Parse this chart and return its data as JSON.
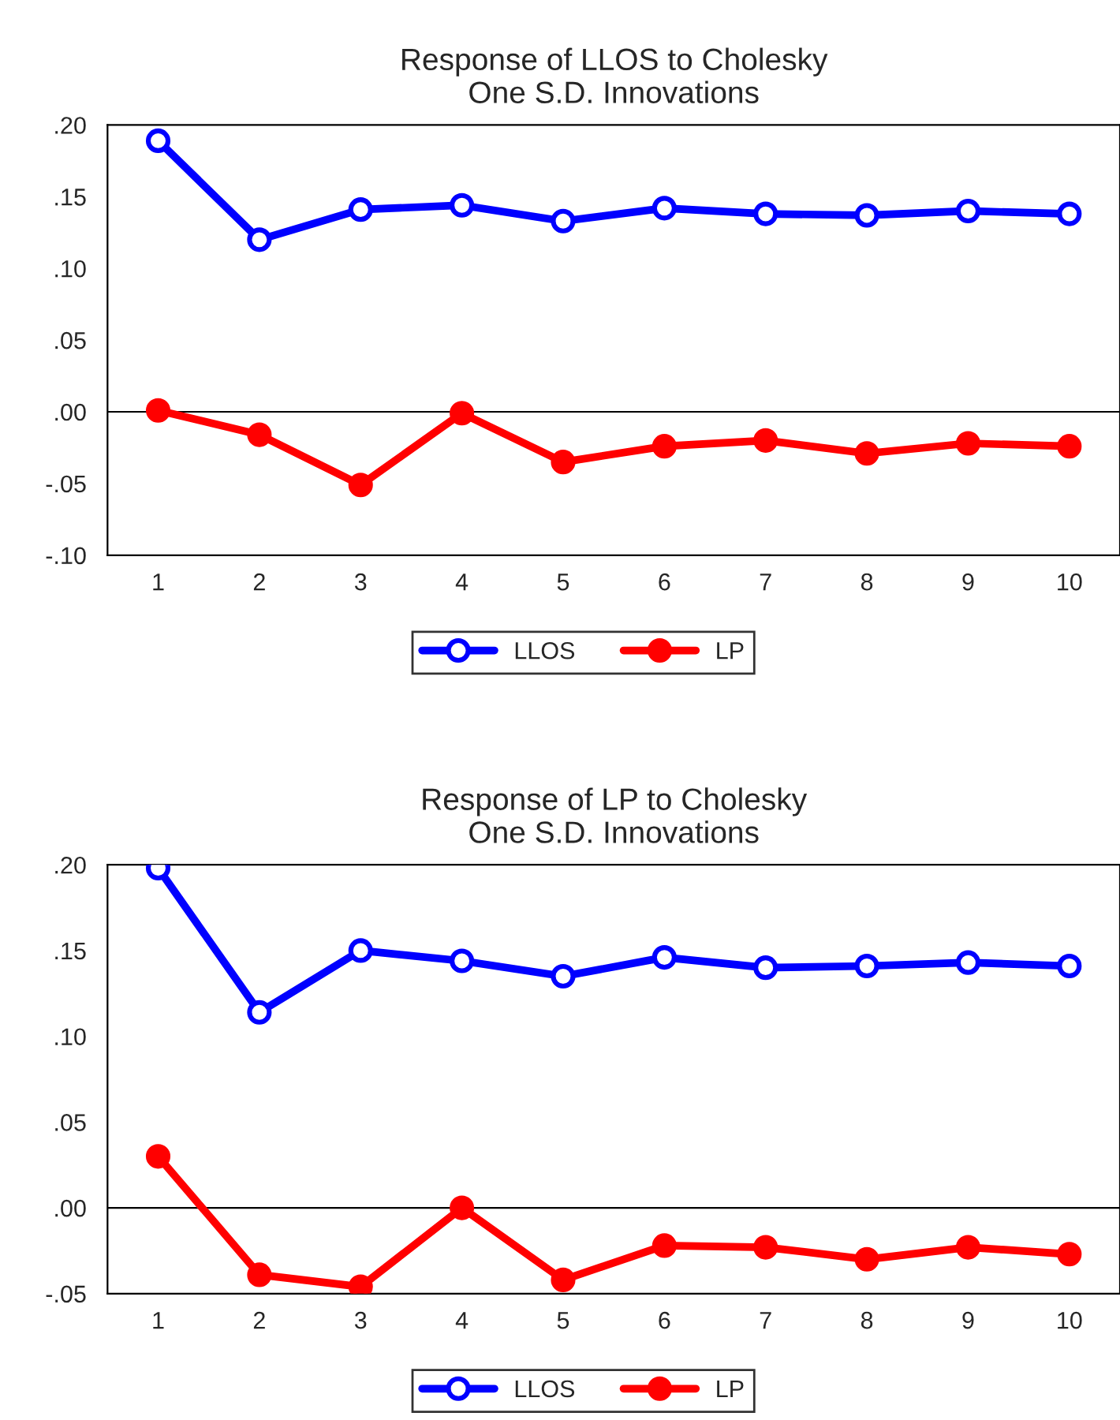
{
  "chart_data": [
    {
      "type": "line",
      "title": "Response of LLOS to Cholesky\nOne S.D. Innovations",
      "categories": [
        "1",
        "2",
        "3",
        "4",
        "5",
        "6",
        "7",
        "8",
        "9",
        "10"
      ],
      "series": [
        {
          "name": "LLOS",
          "color": "#0000ff",
          "marker": "circle",
          "values": [
            0.189,
            0.12,
            0.141,
            0.144,
            0.133,
            0.142,
            0.138,
            0.137,
            0.14,
            0.138
          ]
        },
        {
          "name": "LP",
          "color": "#ff0000",
          "marker": "circle",
          "values": [
            0.001,
            -0.016,
            -0.051,
            -0.001,
            -0.035,
            -0.024,
            -0.02,
            -0.029,
            -0.022,
            -0.024
          ]
        }
      ],
      "ylim": [
        -0.1,
        0.2
      ],
      "yticks": [
        {
          "value": -0.1,
          "label": "-.10"
        },
        {
          "value": -0.05,
          "label": "-.05"
        },
        {
          "value": 0,
          "label": ".00"
        },
        {
          "value": 0.05,
          "label": ".05"
        },
        {
          "value": 0.1,
          "label": ".10"
        },
        {
          "value": 0.15,
          "label": ".15"
        },
        {
          "value": 0.2,
          "label": ".20"
        }
      ],
      "ref_lines": [
        {
          "axis": "y",
          "value": 0,
          "color": "#000000"
        }
      ],
      "grid": false,
      "legend": "bottom",
      "line_style": "solid"
    },
    {
      "type": "line",
      "title": "Response of LP to Cholesky\nOne S.D. Innovations",
      "categories": [
        "1",
        "2",
        "3",
        "4",
        "5",
        "6",
        "7",
        "8",
        "9",
        "10"
      ],
      "series": [
        {
          "name": "LLOS",
          "color": "#0000ff",
          "marker": "circle",
          "values": [
            0.198,
            0.114,
            0.15,
            0.144,
            0.135,
            0.146,
            0.14,
            0.141,
            0.143,
            0.141
          ]
        },
        {
          "name": "LP",
          "color": "#ff0000",
          "marker": "circle",
          "values": [
            0.03,
            -0.039,
            -0.046,
            0.0,
            -0.042,
            -0.022,
            -0.023,
            -0.03,
            -0.023,
            -0.027
          ]
        }
      ],
      "ylim": [
        -0.05,
        0.2
      ],
      "yticks": [
        {
          "value": -0.05,
          "label": "-.05"
        },
        {
          "value": 0,
          "label": ".00"
        },
        {
          "value": 0.05,
          "label": ".05"
        },
        {
          "value": 0.1,
          "label": ".10"
        },
        {
          "value": 0.15,
          "label": ".15"
        },
        {
          "value": 0.2,
          "label": ".20"
        }
      ],
      "ref_lines": [
        {
          "axis": "y",
          "value": 0,
          "color": "#000000"
        }
      ],
      "grid": false,
      "legend": "bottom",
      "line_style": "solid"
    }
  ]
}
